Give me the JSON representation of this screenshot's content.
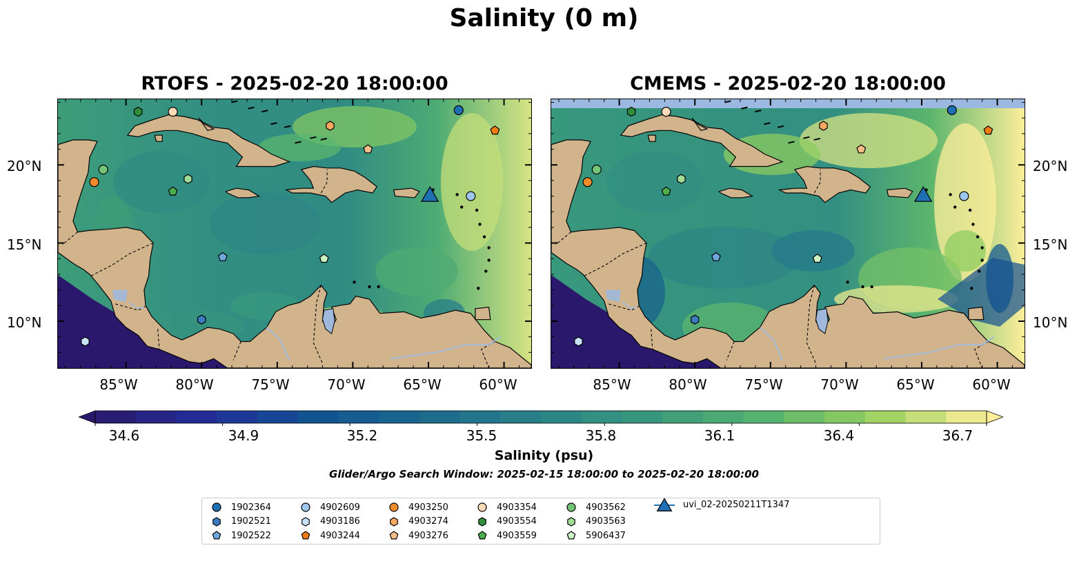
{
  "suptitle": "Salinity (0 m)",
  "panels": [
    {
      "title": "RTOFS - 2025-02-20 18:00:00"
    },
    {
      "title": "CMEMS - 2025-02-20 18:00:00"
    }
  ],
  "axes": {
    "lon_ticks": [
      "85°W",
      "80°W",
      "75°W",
      "70°W",
      "65°W",
      "60°W"
    ],
    "lat_ticks": [
      "20°N",
      "15°N",
      "10°N"
    ]
  },
  "colorbar": {
    "min": 34.6,
    "max": 36.7,
    "ticks": [
      "34.6",
      "34.9",
      "35.2",
      "35.5",
      "35.8",
      "36.1",
      "36.4",
      "36.7"
    ],
    "label": "Salinity (psu)",
    "extend": "both",
    "colormap": "haline",
    "levels": 22
  },
  "subtitle": "Glider/Argo Search Window: 2025-02-15 18:00:00 to 2025-02-20 18:00:00",
  "colors": {
    "land": "#d2b48c",
    "lake": "#9fb8db",
    "river": "#a6bcdc",
    "nodata": "#9ab8e0"
  },
  "legend": [
    {
      "label": "1902364",
      "marker": "circle",
      "color": "#1f6fb4"
    },
    {
      "label": "1902521",
      "marker": "hexagon",
      "color": "#3b7cc0"
    },
    {
      "label": "1902522",
      "marker": "pentagon",
      "color": "#6fa8dc"
    },
    {
      "label": "4902609",
      "marker": "circle",
      "color": "#9ec5ea"
    },
    {
      "label": "4903186",
      "marker": "hexagon",
      "color": "#c9e4f8"
    },
    {
      "label": "4903244",
      "marker": "pentagon",
      "color": "#f07d12"
    },
    {
      "label": "4903250",
      "marker": "circle",
      "color": "#f28c2a"
    },
    {
      "label": "4903274",
      "marker": "hexagon",
      "color": "#f9a860"
    },
    {
      "label": "4903276",
      "marker": "pentagon",
      "color": "#fbc08a"
    },
    {
      "label": "4903354",
      "marker": "circle",
      "color": "#fddbb8"
    },
    {
      "label": "4903554",
      "marker": "hexagon",
      "color": "#2f8f3a"
    },
    {
      "label": "4903559",
      "marker": "pentagon",
      "color": "#4cae4c"
    },
    {
      "label": "4903562",
      "marker": "circle",
      "color": "#74c476"
    },
    {
      "label": "4903563",
      "marker": "hexagon",
      "color": "#a1dc96"
    },
    {
      "label": "5906437",
      "marker": "pentagon",
      "color": "#cdf2c4"
    },
    {
      "label": "uvi_02-20250211T1347",
      "marker": "triangle",
      "color": "#1f6fb4"
    }
  ],
  "markers": [
    {
      "id": "1902364",
      "lon": -63.0,
      "lat": 23.5
    },
    {
      "id": "1902521",
      "lon": -80.0,
      "lat": 10.1
    },
    {
      "id": "1902522",
      "lon": -78.6,
      "lat": 14.1
    },
    {
      "id": "4902609",
      "lon": -62.2,
      "lat": 18.0
    },
    {
      "id": "4903186",
      "lon": -87.7,
      "lat": 8.7
    },
    {
      "id": "4903244",
      "lon": -60.6,
      "lat": 22.2
    },
    {
      "id": "4903250",
      "lon": -87.1,
      "lat": 18.9
    },
    {
      "id": "4903274",
      "lon": -71.5,
      "lat": 22.5
    },
    {
      "id": "4903276",
      "lon": -69.0,
      "lat": 21.0
    },
    {
      "id": "4903354",
      "lon": -81.9,
      "lat": 23.4
    },
    {
      "id": "4903554",
      "lon": -84.2,
      "lat": 23.4
    },
    {
      "id": "4903559",
      "lon": -81.9,
      "lat": 18.3
    },
    {
      "id": "4903562",
      "lon": -86.5,
      "lat": 19.7
    },
    {
      "id": "4903563",
      "lon": -80.9,
      "lat": 19.1
    },
    {
      "id": "5906437",
      "lon": -71.9,
      "lat": 14.0
    },
    {
      "id": "uvi_02-20250211T1347",
      "lon": -64.9,
      "lat": 18.1
    }
  ]
}
